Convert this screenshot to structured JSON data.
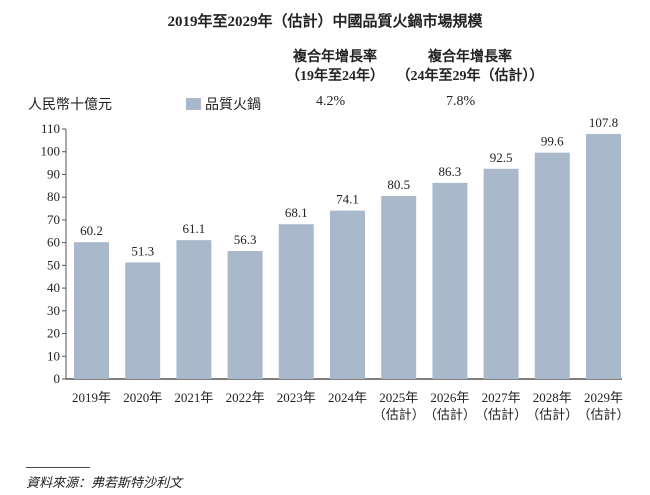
{
  "chart_data": {
    "type": "bar",
    "title": "2019年至2029年（估計）中國品質火鍋市場規模",
    "ylabel": "人民幣十億元",
    "categories": [
      "2019年",
      "2020年",
      "2021年",
      "2022年",
      "2023年",
      "2024年",
      "2025年\n（估計）",
      "2026年\n（估計）",
      "2027年\n（估計）",
      "2028年\n（估計）",
      "2029年\n（估計）"
    ],
    "series": [
      {
        "name": "品質火鍋",
        "values": [
          60.2,
          51.3,
          61.1,
          56.3,
          68.1,
          74.1,
          80.5,
          86.3,
          92.5,
          99.6,
          107.8
        ]
      }
    ],
    "ylim": [
      0,
      110
    ],
    "yticks": [
      0,
      10,
      20,
      30,
      40,
      50,
      60,
      70,
      80,
      90,
      100,
      110
    ],
    "grid": false,
    "legend_position": "top",
    "bar_color": "#a9b9cb",
    "cagr": [
      {
        "header_line1": "複合年增長率",
        "header_line2": "（19年至24年）",
        "value": "4.2%"
      },
      {
        "header_line1": "複合年增長率",
        "header_line2": "（24年至29年（估計））",
        "value": "7.8%"
      }
    ]
  },
  "source": "資料來源：弗若斯特沙利文"
}
